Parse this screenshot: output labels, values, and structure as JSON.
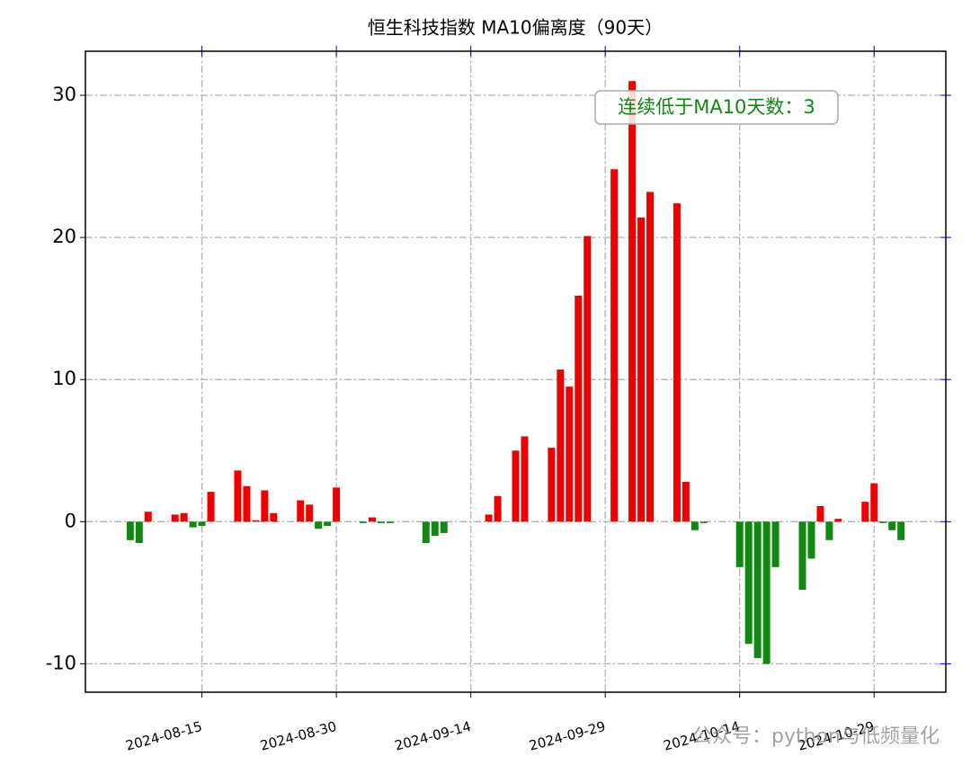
{
  "chart_data": {
    "type": "bar",
    "title": "恒生科技指数 MA10偏离度（90天）",
    "annotation": "连续低于MA10天数：3",
    "watermark": "公众号：python与低频量化",
    "x": [
      "2024-08-07",
      "2024-08-08",
      "2024-08-09",
      "2024-08-12",
      "2024-08-13",
      "2024-08-14",
      "2024-08-15",
      "2024-08-16",
      "2024-08-19",
      "2024-08-20",
      "2024-08-21",
      "2024-08-22",
      "2024-08-23",
      "2024-08-26",
      "2024-08-27",
      "2024-08-28",
      "2024-08-29",
      "2024-08-30",
      "2024-09-02",
      "2024-09-03",
      "2024-09-04",
      "2024-09-05",
      "2024-09-09",
      "2024-09-10",
      "2024-09-11",
      "2024-09-16",
      "2024-09-17",
      "2024-09-19",
      "2024-09-20",
      "2024-09-23",
      "2024-09-24",
      "2024-09-25",
      "2024-09-26",
      "2024-09-27",
      "2024-09-30",
      "2024-10-02",
      "2024-10-03",
      "2024-10-04",
      "2024-10-07",
      "2024-10-08",
      "2024-10-09",
      "2024-10-10",
      "2024-10-14",
      "2024-10-15",
      "2024-10-16",
      "2024-10-17",
      "2024-10-18",
      "2024-10-21",
      "2024-10-22",
      "2024-10-23",
      "2024-10-24",
      "2024-10-25",
      "2024-10-28",
      "2024-10-29",
      "2024-10-30",
      "2024-10-31",
      "2024-11-01"
    ],
    "values": [
      -1.3,
      -1.5,
      0.7,
      0.5,
      0.6,
      -0.4,
      -0.3,
      2.1,
      3.6,
      2.5,
      0.1,
      2.2,
      0.6,
      1.5,
      1.2,
      -0.5,
      -0.3,
      2.4,
      -0.1,
      0.3,
      -0.1,
      -0.1,
      -1.5,
      -1.0,
      -0.8,
      0.5,
      1.8,
      5.0,
      6.0,
      5.2,
      10.7,
      9.5,
      15.9,
      20.1,
      24.8,
      31.0,
      21.4,
      23.2,
      22.4,
      2.8,
      -0.6,
      -0.1,
      -3.2,
      -8.6,
      -9.6,
      -10.0,
      -3.2,
      -4.8,
      -2.6,
      1.1,
      -1.3,
      0.2,
      1.4,
      2.7,
      -0.1,
      -0.6,
      -1.3
    ],
    "positive_color": "#ee0000",
    "negative_color": "#118811",
    "xlim": [
      "2024-08-02",
      "2024-11-06"
    ],
    "xticks": [
      "2024-08-15",
      "2024-08-30",
      "2024-09-14",
      "2024-09-29",
      "2024-10-14",
      "2024-10-29"
    ],
    "ylim": [
      -12.0,
      33.1
    ],
    "yticks": [
      -10,
      0,
      10,
      20,
      30
    ],
    "grid": true
  }
}
